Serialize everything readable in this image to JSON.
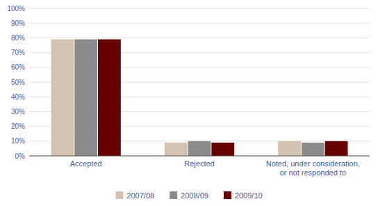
{
  "chart_data": {
    "type": "bar",
    "categories": [
      "Accepted",
      "Rejected",
      "Noted, under consideration,\nor not responded to"
    ],
    "series": [
      {
        "name": "2007/08",
        "color": "#d4c3b0",
        "values": [
          79,
          9,
          10
        ]
      },
      {
        "name": "2008/09",
        "color": "#8b8b8b",
        "values": [
          79,
          10,
          9
        ]
      },
      {
        "name": "2009/10",
        "color": "#660000",
        "values": [
          79,
          9,
          10
        ]
      }
    ],
    "ylim": [
      0,
      100
    ],
    "yticks": [
      {
        "value": 0,
        "label": "0%"
      },
      {
        "value": 10,
        "label": "10%"
      },
      {
        "value": 20,
        "label": "20%"
      },
      {
        "value": 30,
        "label": "30%"
      },
      {
        "value": 40,
        "label": "40%"
      },
      {
        "value": 50,
        "label": "50%"
      },
      {
        "value": 60,
        "label": "60%"
      },
      {
        "value": 70,
        "label": "70%"
      },
      {
        "value": 80,
        "label": "80%"
      },
      {
        "value": 90,
        "label": "90%"
      },
      {
        "value": 100,
        "label": "100%"
      }
    ],
    "grid": true,
    "legend": "bottom"
  }
}
